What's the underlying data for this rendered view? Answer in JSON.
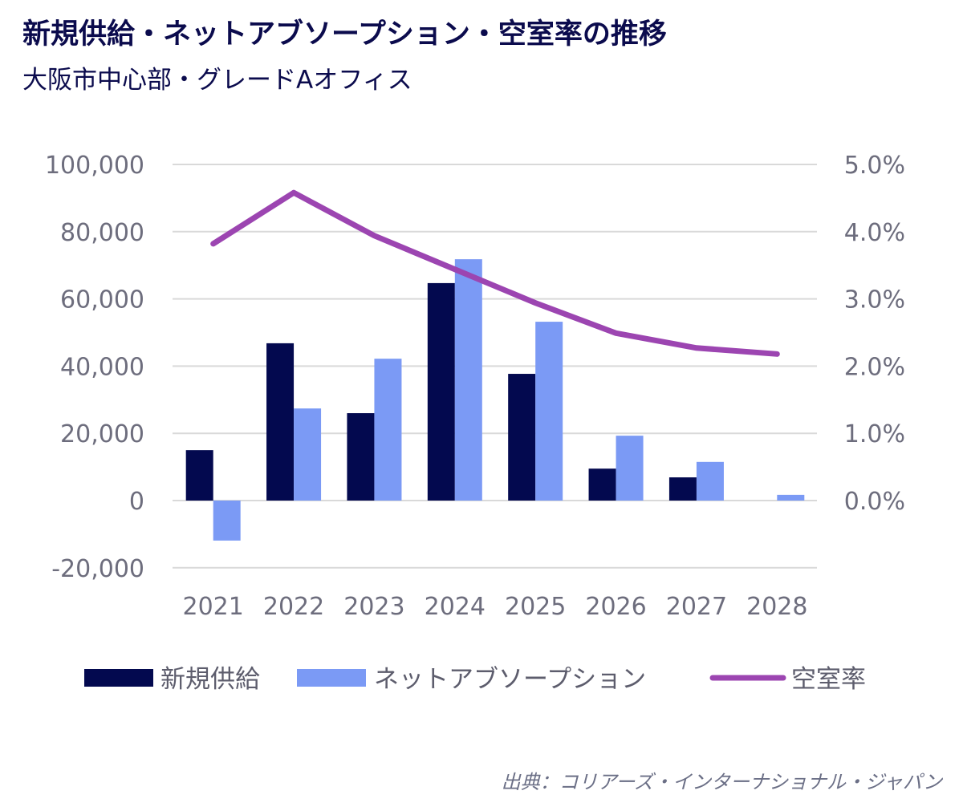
{
  "title": "新規供給・ネットアブソープション・空室率の推移",
  "subtitle": "大阪市中心部・グレードAオフィス",
  "source": "出典：コリアーズ・インターナショナル・ジャパン",
  "colors": {
    "supply": "#03094f",
    "absorption": "#7b9af5",
    "vacancy": "#9c45b1",
    "grid": "#d9d9d9"
  },
  "chart_data": {
    "type": "bar",
    "categories": [
      "2021",
      "2022",
      "2023",
      "2024",
      "2025",
      "2026",
      "2027",
      "2028"
    ],
    "series": [
      {
        "name": "新規供給",
        "type": "bar",
        "axis": "left",
        "values": [
          15000,
          46800,
          26000,
          64700,
          37700,
          9500,
          6900,
          0
        ]
      },
      {
        "name": "ネットアブソープション",
        "type": "bar",
        "axis": "left",
        "values": [
          -11900,
          27400,
          42200,
          71800,
          53200,
          19300,
          11500,
          1700
        ]
      },
      {
        "name": "空室率",
        "type": "line",
        "axis": "right",
        "values": [
          3.82,
          4.58,
          3.94,
          3.44,
          2.94,
          2.49,
          2.27,
          2.18
        ]
      }
    ],
    "ylim": [
      -20000,
      100000
    ],
    "y_ticks": [
      "-20,000",
      "0",
      "20,000",
      "40,000",
      "60,000",
      "80,000",
      "100,000"
    ],
    "y2lim": [
      -1.0,
      5.0
    ],
    "y2_ticks": [
      "0.0%",
      "1.0%",
      "2.0%",
      "3.0%",
      "4.0%",
      "5.0%"
    ],
    "grid": true,
    "legend_position": "bottom"
  }
}
